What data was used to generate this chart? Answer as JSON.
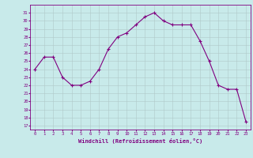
{
  "x": [
    0,
    1,
    2,
    3,
    4,
    5,
    6,
    7,
    8,
    9,
    10,
    11,
    12,
    13,
    14,
    15,
    16,
    17,
    18,
    19,
    20,
    21,
    22,
    23
  ],
  "y": [
    24,
    25.5,
    25.5,
    23,
    22,
    22,
    22.5,
    24,
    26.5,
    28,
    28.5,
    29.5,
    30.5,
    31,
    30,
    29.5,
    29.5,
    29.5,
    27.5,
    25,
    22,
    21.5,
    21.5,
    17.5
  ],
  "line_color": "#800080",
  "marker": "+",
  "bg_color": "#c8eaea",
  "grid_color": "#b0c8c8",
  "xlabel": "Windchill (Refroidissement éolien,°C)",
  "xlabel_color": "#800080",
  "tick_color": "#800080",
  "ylabel_ticks": [
    17,
    18,
    19,
    20,
    21,
    22,
    23,
    24,
    25,
    26,
    27,
    28,
    29,
    30,
    31
  ],
  "xlim": [
    -0.5,
    23.5
  ],
  "ylim": [
    16.5,
    32
  ]
}
